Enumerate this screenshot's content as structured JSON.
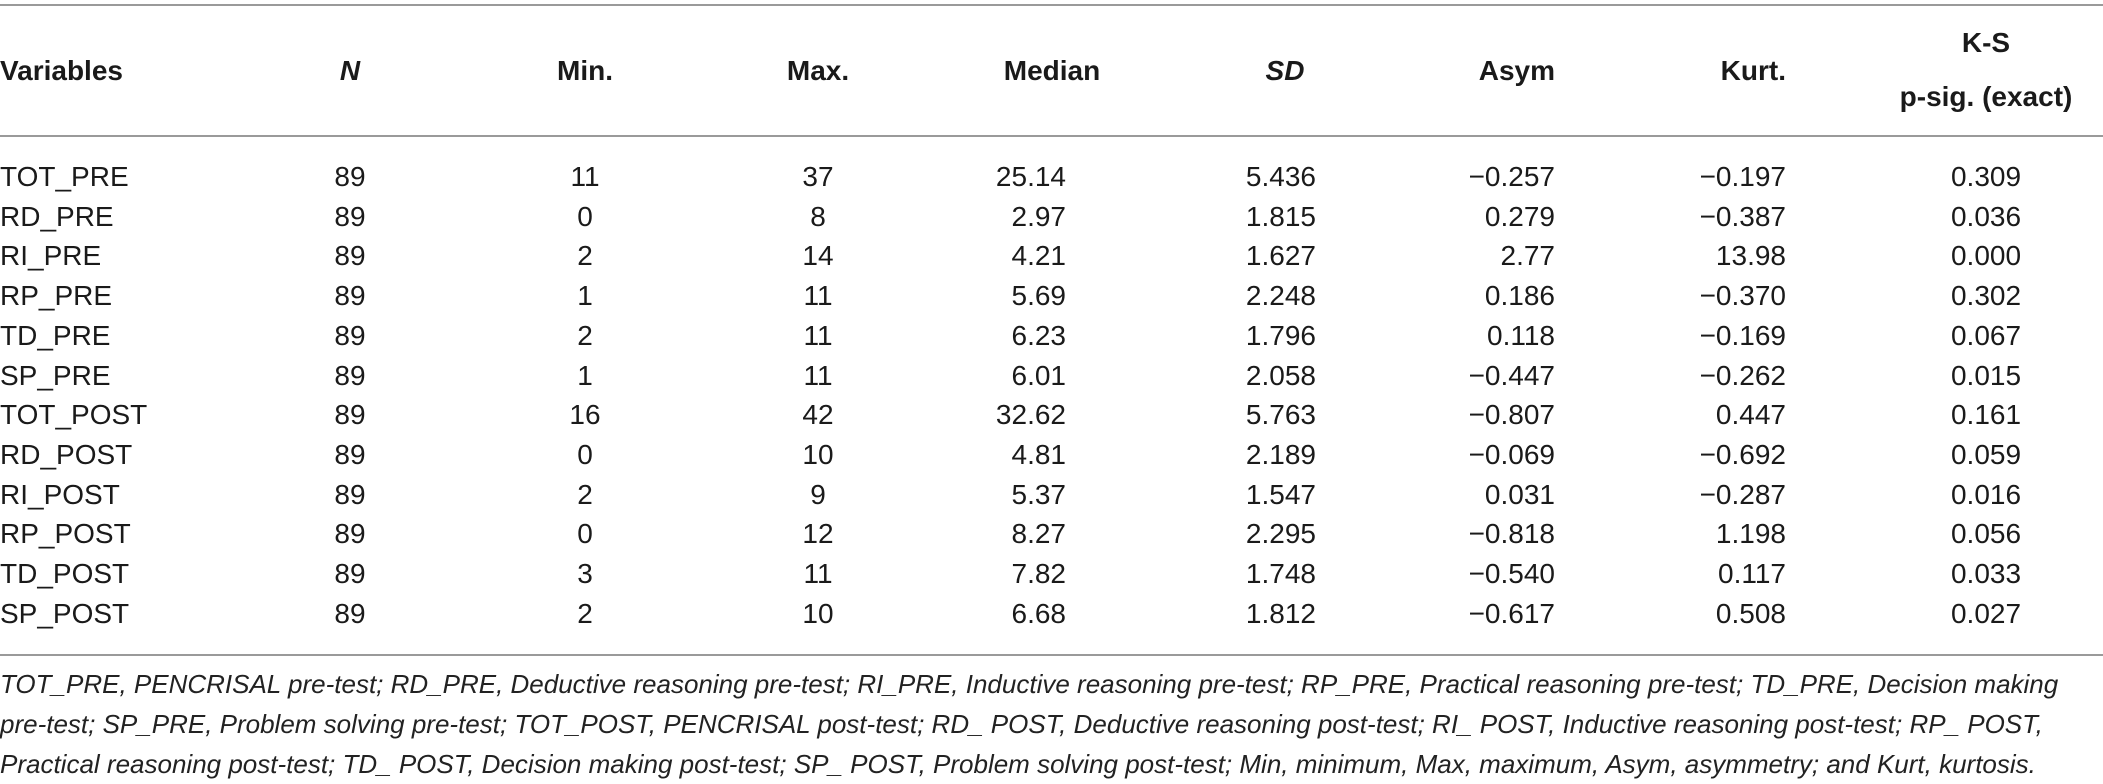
{
  "table": {
    "headers": {
      "variables": "Variables",
      "n": "N",
      "min": "Min.",
      "max": "Max.",
      "median": "Median",
      "sd": "SD",
      "asym": "Asym",
      "kurt": "Kurt.",
      "ks_line1": "K-S",
      "ks_line2": "p-sig. (exact)"
    },
    "rows": [
      {
        "variable": "TOT_PRE",
        "n": "89",
        "min": "11",
        "max": "37",
        "median": "25.14",
        "sd": "5.436",
        "asym": "−0.257",
        "kurt": "−0.197",
        "ks": "0.309"
      },
      {
        "variable": "RD_PRE",
        "n": "89",
        "min": "0",
        "max": "8",
        "median": "2.97",
        "sd": "1.815",
        "asym": "0.279",
        "kurt": "−0.387",
        "ks": "0.036"
      },
      {
        "variable": "RI_PRE",
        "n": "89",
        "min": "2",
        "max": "14",
        "median": "4.21",
        "sd": "1.627",
        "asym": "2.77",
        "kurt": "13.98",
        "ks": "0.000"
      },
      {
        "variable": "RP_PRE",
        "n": "89",
        "min": "1",
        "max": "11",
        "median": "5.69",
        "sd": "2.248",
        "asym": "0.186",
        "kurt": "−0.370",
        "ks": "0.302"
      },
      {
        "variable": "TD_PRE",
        "n": "89",
        "min": "2",
        "max": "11",
        "median": "6.23",
        "sd": "1.796",
        "asym": "0.118",
        "kurt": "−0.169",
        "ks": "0.067"
      },
      {
        "variable": "SP_PRE",
        "n": "89",
        "min": "1",
        "max": "11",
        "median": "6.01",
        "sd": "2.058",
        "asym": "−0.447",
        "kurt": "−0.262",
        "ks": "0.015"
      },
      {
        "variable": "TOT_POST",
        "n": "89",
        "min": "16",
        "max": "42",
        "median": "32.62",
        "sd": "5.763",
        "asym": "−0.807",
        "kurt": "0.447",
        "ks": "0.161"
      },
      {
        "variable": "RD_POST",
        "n": "89",
        "min": "0",
        "max": "10",
        "median": "4.81",
        "sd": "2.189",
        "asym": "−0.069",
        "kurt": "−0.692",
        "ks": "0.059"
      },
      {
        "variable": "RI_POST",
        "n": "89",
        "min": "2",
        "max": "9",
        "median": "5.37",
        "sd": "1.547",
        "asym": "0.031",
        "kurt": "−0.287",
        "ks": "0.016"
      },
      {
        "variable": "RP_POST",
        "n": "89",
        "min": "0",
        "max": "12",
        "median": "8.27",
        "sd": "2.295",
        "asym": "−0.818",
        "kurt": "1.198",
        "ks": "0.056"
      },
      {
        "variable": "TD_POST",
        "n": "89",
        "min": "3",
        "max": "11",
        "median": "7.82",
        "sd": "1.748",
        "asym": "−0.540",
        "kurt": "0.117",
        "ks": "0.033"
      },
      {
        "variable": "SP_POST",
        "n": "89",
        "min": "2",
        "max": "10",
        "median": "6.68",
        "sd": "1.812",
        "asym": "−0.617",
        "kurt": "0.508",
        "ks": "0.027"
      }
    ]
  },
  "footnote": "TOT_PRE, PENCRISAL pre-test; RD_PRE, Deductive reasoning pre-test; RI_PRE, Inductive reasoning pre-test; RP_PRE, Practical reasoning pre-test; TD_PRE, Decision making pre-test; SP_PRE, Problem solving pre-test; TOT_POST, PENCRISAL post-test; RD_ POST, Deductive reasoning post-test; RI_ POST, Inductive reasoning post-test; RP_ POST, Practical reasoning post-test; TD_ POST, Decision making post-test; SP_ POST, Problem solving post-test; Min, minimum, Max, maximum, Asym, asymmetry; and Kurt, kurtosis."
}
